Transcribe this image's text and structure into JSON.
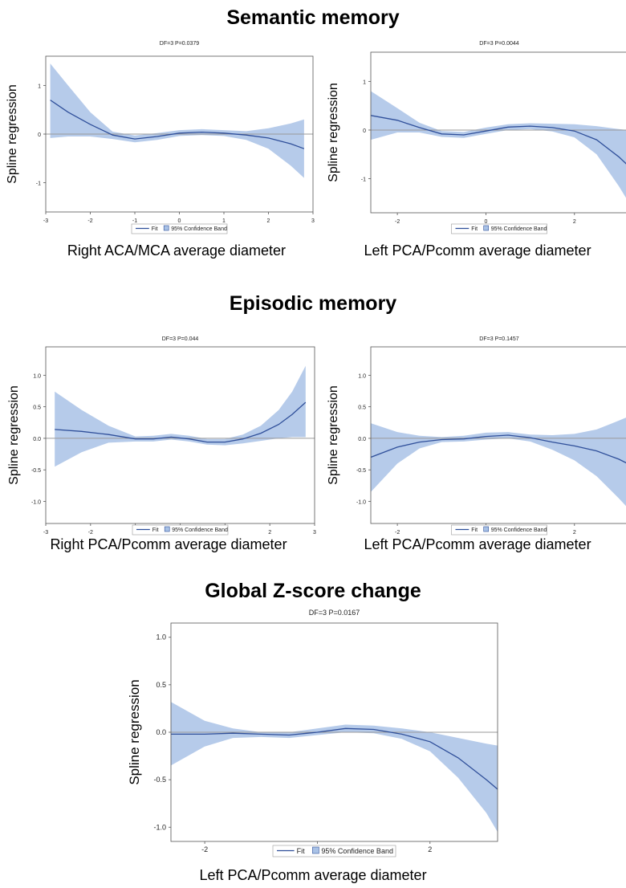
{
  "sections": {
    "semantic": "Semantic memory",
    "episodic": "Episodic memory",
    "global": "Global Z-score change"
  },
  "chart_data": [
    {
      "type": "line",
      "panel": "semantic-left",
      "title": "DF=3  P=0.0379",
      "xlabel": "Right ACA/MCA average diameter",
      "ylabel": "Spline regression",
      "xlim": [
        -3,
        3
      ],
      "ylim": [
        -1.6,
        1.6
      ],
      "xticks": [
        -3,
        -2,
        -1,
        0,
        1,
        2,
        3
      ],
      "yticks": [
        -1,
        0,
        1
      ],
      "ytick_labels": [
        "-1",
        "0",
        "1"
      ],
      "legend": {
        "fit": "Fit",
        "band": "95% Confidence Band"
      },
      "x": [
        -2.9,
        -2.5,
        -2.0,
        -1.5,
        -1.0,
        -0.5,
        0.0,
        0.5,
        1.0,
        1.5,
        2.0,
        2.5,
        2.8
      ],
      "fit": [
        0.7,
        0.45,
        0.2,
        -0.02,
        -0.1,
        -0.05,
        0.02,
        0.04,
        0.02,
        -0.02,
        -0.08,
        -0.2,
        -0.3
      ],
      "lower": [
        -0.08,
        -0.05,
        -0.05,
        -0.1,
        -0.17,
        -0.12,
        -0.04,
        -0.02,
        -0.04,
        -0.12,
        -0.3,
        -0.65,
        -0.9
      ],
      "upper": [
        1.45,
        1.0,
        0.45,
        0.05,
        -0.03,
        0.02,
        0.08,
        0.1,
        0.08,
        0.06,
        0.12,
        0.22,
        0.3
      ]
    },
    {
      "type": "line",
      "panel": "semantic-right",
      "title": "DF=3  P=0.0044",
      "xlabel": "Left PCA/Pcomm average diameter",
      "ylabel": "Spline regression",
      "xlim": [
        -2.6,
        3.2
      ],
      "ylim": [
        -1.7,
        1.6
      ],
      "xticks": [
        -2,
        0,
        2
      ],
      "yticks": [
        -1,
        0,
        1
      ],
      "ytick_labels": [
        "-1",
        "0",
        "1"
      ],
      "legend": {
        "fit": "Fit",
        "band": "95% Confidence Band"
      },
      "x": [
        -2.6,
        -2.0,
        -1.5,
        -1.0,
        -0.5,
        0.0,
        0.5,
        1.0,
        1.5,
        2.0,
        2.5,
        3.0,
        3.2
      ],
      "fit": [
        0.3,
        0.2,
        0.05,
        -0.08,
        -0.1,
        -0.02,
        0.06,
        0.08,
        0.05,
        -0.02,
        -0.2,
        -0.55,
        -0.72
      ],
      "lower": [
        -0.2,
        -0.05,
        -0.05,
        -0.14,
        -0.16,
        -0.08,
        0.0,
        0.02,
        -0.03,
        -0.15,
        -0.5,
        -1.15,
        -1.45
      ],
      "upper": [
        0.8,
        0.45,
        0.15,
        -0.02,
        -0.04,
        0.05,
        0.12,
        0.14,
        0.13,
        0.12,
        0.08,
        0.02,
        0.0
      ]
    },
    {
      "type": "line",
      "panel": "episodic-left",
      "title": "DF=3  P=0.044",
      "xlabel": "Right PCA/Pcomm average diameter",
      "ylabel": "Spline regression",
      "xlim": [
        -3,
        3
      ],
      "ylim": [
        -1.35,
        1.45
      ],
      "xticks": [
        -3,
        -2,
        -1,
        0,
        1,
        2,
        3
      ],
      "yticks": [
        -1.0,
        -0.5,
        0.0,
        0.5,
        1.0
      ],
      "ytick_labels": [
        "-1.0",
        "-0.5",
        "0.0",
        "0.5",
        "1.0"
      ],
      "legend": {
        "fit": "Fit",
        "band": "95% Confidence Band"
      },
      "x": [
        -2.8,
        -2.2,
        -1.6,
        -1.0,
        -0.6,
        -0.2,
        0.2,
        0.6,
        1.0,
        1.4,
        1.8,
        2.2,
        2.5,
        2.8
      ],
      "fit": [
        0.14,
        0.11,
        0.06,
        -0.01,
        -0.01,
        0.02,
        -0.01,
        -0.06,
        -0.06,
        -0.01,
        0.08,
        0.22,
        0.38,
        0.57
      ],
      "lower": [
        -0.45,
        -0.22,
        -0.07,
        -0.05,
        -0.05,
        -0.02,
        -0.05,
        -0.1,
        -0.11,
        -0.08,
        -0.04,
        0.0,
        0.02,
        0.02
      ],
      "upper": [
        0.74,
        0.45,
        0.2,
        0.03,
        0.04,
        0.07,
        0.04,
        -0.01,
        -0.01,
        0.06,
        0.2,
        0.45,
        0.74,
        1.15
      ]
    },
    {
      "type": "line",
      "panel": "episodic-right",
      "title": "DF=3  P=0.1457",
      "xlabel": "Left PCA/Pcomm average diameter",
      "ylabel": "Spline regression",
      "xlim": [
        -2.6,
        3.2
      ],
      "ylim": [
        -1.35,
        1.45
      ],
      "xticks": [
        -2,
        0,
        2
      ],
      "yticks": [
        -1.0,
        -0.5,
        0.0,
        0.5,
        1.0
      ],
      "ytick_labels": [
        "-1.0",
        "-0.5",
        "0.0",
        "0.5",
        "1.0"
      ],
      "legend": {
        "fit": "Fit",
        "band": "95% Confidence Band"
      },
      "x": [
        -2.6,
        -2.0,
        -1.5,
        -1.0,
        -0.5,
        0.0,
        0.5,
        1.0,
        1.5,
        2.0,
        2.5,
        3.0,
        3.2
      ],
      "fit": [
        -0.3,
        -0.14,
        -0.06,
        -0.02,
        -0.01,
        0.03,
        0.05,
        0.01,
        -0.06,
        -0.12,
        -0.2,
        -0.33,
        -0.4
      ],
      "lower": [
        -0.85,
        -0.4,
        -0.16,
        -0.06,
        -0.05,
        -0.02,
        0.0,
        -0.05,
        -0.18,
        -0.35,
        -0.6,
        -0.95,
        -1.1
      ],
      "upper": [
        0.24,
        0.1,
        0.04,
        0.02,
        0.04,
        0.09,
        0.1,
        0.06,
        0.05,
        0.07,
        0.14,
        0.28,
        0.34
      ]
    },
    {
      "type": "line",
      "panel": "global",
      "title": "DF=3  P=0.0167",
      "xlabel": "Left PCA/Pcomm average diameter",
      "ylabel": "Spline regression",
      "xlim": [
        -2.6,
        3.2
      ],
      "ylim": [
        -1.15,
        1.15
      ],
      "xticks": [
        -2,
        0,
        2
      ],
      "yticks": [
        -1.0,
        -0.5,
        0.0,
        0.5,
        1.0
      ],
      "ytick_labels": [
        "-1.0",
        "-0.5",
        "0.0",
        "0.5",
        "1.0"
      ],
      "legend": {
        "fit": "Fit",
        "band": "95% Confidence Band"
      },
      "x": [
        -2.6,
        -2.0,
        -1.5,
        -1.0,
        -0.5,
        0.0,
        0.5,
        1.0,
        1.5,
        2.0,
        2.5,
        3.0,
        3.2
      ],
      "fit": [
        -0.02,
        -0.02,
        -0.01,
        -0.02,
        -0.03,
        0.0,
        0.04,
        0.03,
        -0.02,
        -0.1,
        -0.27,
        -0.5,
        -0.6
      ],
      "lower": [
        -0.35,
        -0.15,
        -0.06,
        -0.05,
        -0.06,
        -0.03,
        0.0,
        -0.01,
        -0.07,
        -0.2,
        -0.48,
        -0.85,
        -1.05
      ],
      "upper": [
        0.32,
        0.12,
        0.04,
        0.0,
        0.0,
        0.04,
        0.08,
        0.07,
        0.04,
        0.0,
        -0.06,
        -0.12,
        -0.14
      ]
    }
  ]
}
